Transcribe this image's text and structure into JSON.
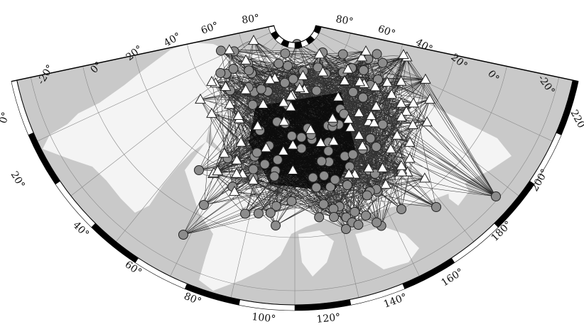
{
  "map": {
    "projection": "polar-stereographic-sector",
    "colors": {
      "background": "#ffffff",
      "ocean": "#c9c9c9",
      "land": "#f4f4f4",
      "gridline": "#888888",
      "ray": "#111111",
      "frame_dark": "#000000",
      "frame_light": "#ffffff",
      "station_fill": "#ffffff",
      "event_fill": "#8c8c8c",
      "symbol_stroke": "#222222"
    },
    "outer_labels": [
      "0°",
      "-20°",
      "0°",
      "20°",
      "40°",
      "60°",
      "80°",
      "80°",
      "60°",
      "40°",
      "20°",
      "0°",
      "-20°",
      "220°"
    ],
    "inner_labels": [
      "20°",
      "40°",
      "60°",
      "80°",
      "100°",
      "120°",
      "140°",
      "160°",
      "180°",
      "200°"
    ],
    "stations_count_shown": 78,
    "events_count_shown": 104,
    "legend": null
  }
}
